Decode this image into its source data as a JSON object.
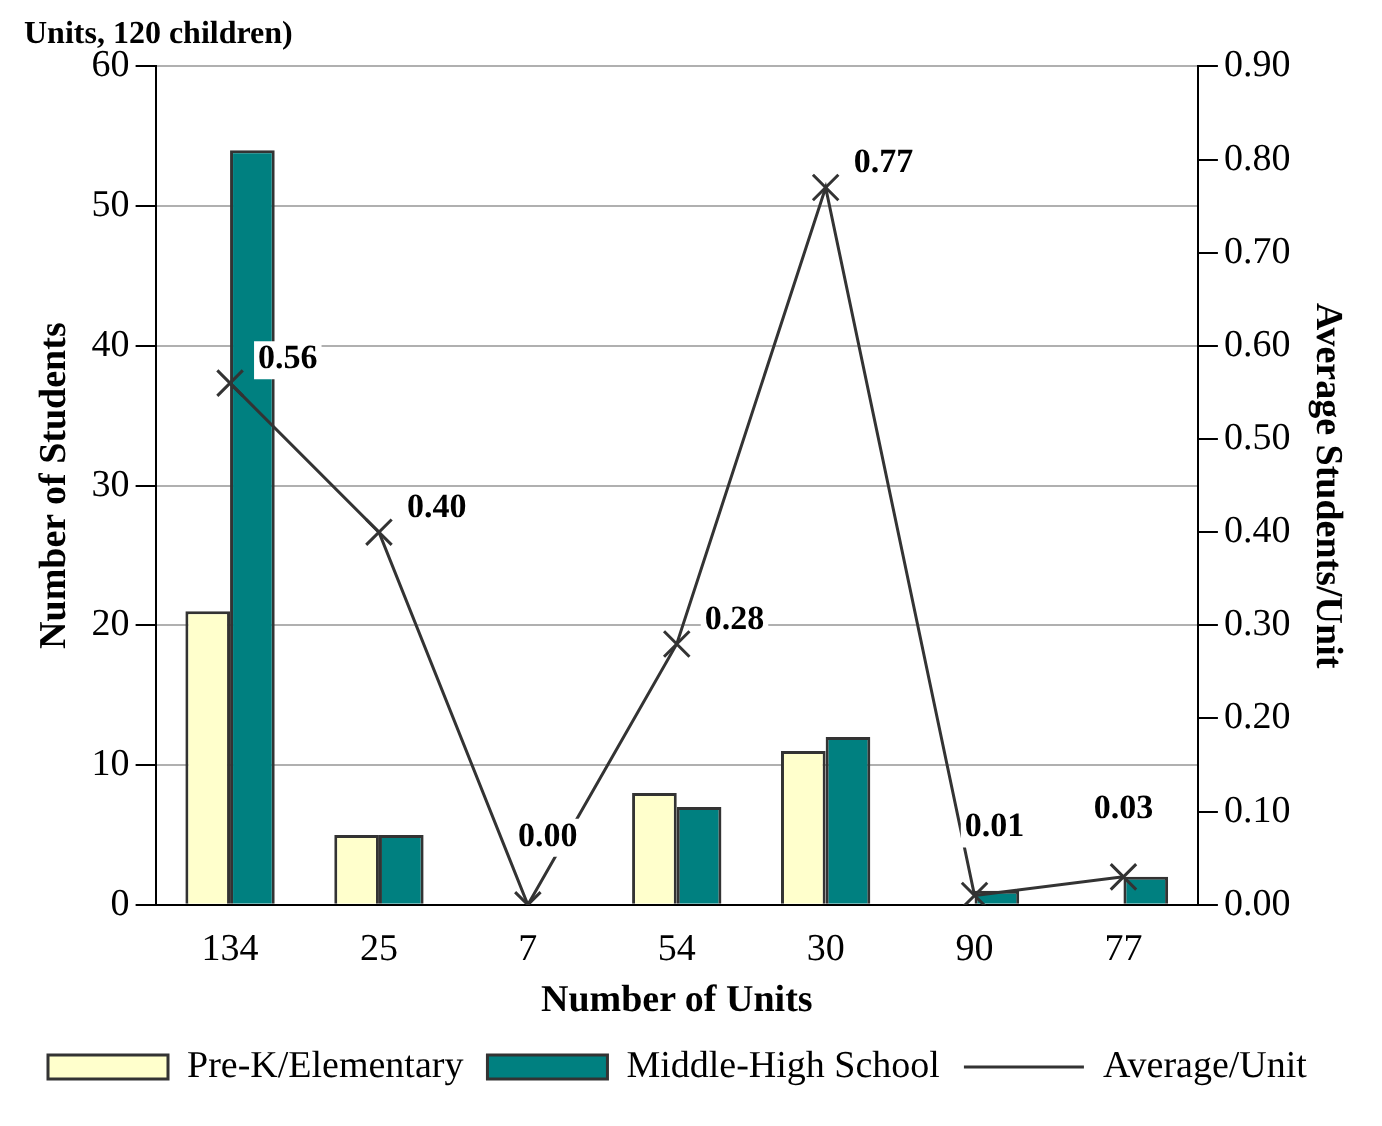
{
  "chart_data": {
    "type": "bar",
    "title": "Units, 120 children)",
    "xlabel": "Number of Units",
    "ylabel": "Number of Students",
    "y2label": "Average Students/Unit",
    "categories": [
      "134",
      "25",
      "7",
      "54",
      "30",
      "90",
      "77"
    ],
    "series": [
      {
        "name": "Pre-K/Elementary",
        "color": "#ffffcc",
        "values": [
          21,
          5,
          0,
          8,
          11,
          0,
          0
        ]
      },
      {
        "name": "Middle-High School",
        "color": "#008080",
        "values": [
          54,
          5,
          0,
          7,
          12,
          1,
          2
        ]
      },
      {
        "name": "Average/Unit",
        "type": "line",
        "axis": "y2",
        "color": "#333333",
        "marker": "cross",
        "values": [
          0.56,
          0.4,
          0.0,
          0.28,
          0.77,
          0.01,
          0.03
        ],
        "value_labels": [
          "0.56",
          "0.40",
          "0.00",
          "0.28",
          "0.77",
          "0.01",
          "0.03"
        ]
      }
    ],
    "ylim": [
      0,
      60
    ],
    "yticks": [
      0,
      10,
      20,
      30,
      40,
      50,
      60
    ],
    "y2lim": [
      0,
      0.9
    ],
    "y2ticks": [
      {
        "value": 0,
        "label": "0.00"
      },
      {
        "value": 0.1,
        "label": "0.10"
      },
      {
        "value": 0.2,
        "label": "0.20"
      },
      {
        "value": 0.3,
        "label": "0.30"
      },
      {
        "value": 0.4,
        "label": "0.40"
      },
      {
        "value": 0.5,
        "label": "0.50"
      },
      {
        "value": 0.6,
        "label": "0.60"
      },
      {
        "value": 0.7,
        "label": "0.70"
      },
      {
        "value": 0.8,
        "label": "0.80"
      },
      {
        "value": 0.9,
        "label": "0.90"
      }
    ],
    "grid": "y",
    "legend": "bottom"
  }
}
